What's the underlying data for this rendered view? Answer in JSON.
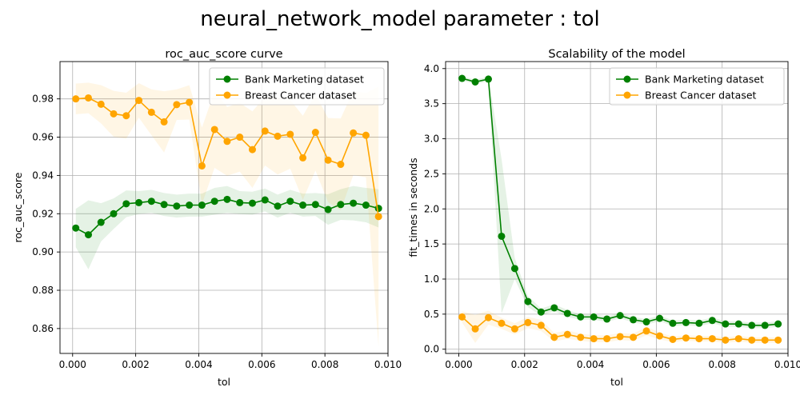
{
  "figure": {
    "suptitle": "neural_network_model parameter : tol"
  },
  "colors": {
    "bank": "#008000",
    "breast": "#FFA500"
  },
  "chart_data": [
    {
      "type": "line",
      "title": "roc_auc_score curve",
      "xlabel": "tol",
      "ylabel": "roc_auc_score",
      "xlim": [
        -0.0004,
        0.01
      ],
      "ylim": [
        0.847,
        0.9995
      ],
      "xticks": [
        0.0,
        0.002,
        0.004,
        0.006,
        0.008,
        0.01
      ],
      "xtick_labels": [
        "0.000",
        "0.002",
        "0.004",
        "0.006",
        "0.008",
        "0.010"
      ],
      "yticks": [
        0.86,
        0.88,
        0.9,
        0.92,
        0.94,
        0.96,
        0.98
      ],
      "ytick_labels": [
        "0.86",
        "0.88",
        "0.90",
        "0.92",
        "0.94",
        "0.96",
        "0.98"
      ],
      "grid": true,
      "legend": "upper-right",
      "x": [
        0.0001,
        0.0005,
        0.0009,
        0.0013,
        0.0017,
        0.0021,
        0.0025,
        0.0029,
        0.0033,
        0.0037,
        0.0041,
        0.0045,
        0.0049,
        0.0053,
        0.0057,
        0.0061,
        0.0065,
        0.0069,
        0.0073,
        0.0077,
        0.0081,
        0.0085,
        0.0089,
        0.0093,
        0.0097
      ],
      "series": [
        {
          "name": "Bank Marketing dataset",
          "color_key": "bank",
          "values": [
            0.9125,
            0.909,
            0.9155,
            0.92,
            0.9252,
            0.9258,
            0.9265,
            0.9248,
            0.924,
            0.9245,
            0.9245,
            0.9265,
            0.9275,
            0.9258,
            0.9255,
            0.9272,
            0.924,
            0.9265,
            0.9245,
            0.9248,
            0.9222,
            0.9248,
            0.9255,
            0.9245,
            0.9228
          ],
          "std": [
            0.01,
            0.018,
            0.01,
            0.008,
            0.007,
            0.006,
            0.006,
            0.006,
            0.006,
            0.006,
            0.006,
            0.007,
            0.007,
            0.006,
            0.006,
            0.006,
            0.006,
            0.006,
            0.006,
            0.006,
            0.008,
            0.008,
            0.009,
            0.009,
            0.01
          ]
        },
        {
          "name": "Breast Cancer dataset",
          "color_key": "breast",
          "values": [
            0.98,
            0.9805,
            0.9772,
            0.9722,
            0.9712,
            0.9792,
            0.973,
            0.968,
            0.977,
            0.9782,
            0.945,
            0.964,
            0.9578,
            0.96,
            0.9535,
            0.9632,
            0.9605,
            0.9615,
            0.9492,
            0.9625,
            0.948,
            0.9458,
            0.9622,
            0.961,
            0.9185
          ],
          "std": [
            0.008,
            0.008,
            0.01,
            0.012,
            0.012,
            0.009,
            0.012,
            0.016,
            0.008,
            0.009,
            0.02,
            0.02,
            0.018,
            0.018,
            0.02,
            0.018,
            0.02,
            0.018,
            0.022,
            0.02,
            0.022,
            0.024,
            0.022,
            0.022,
            0.068
          ]
        }
      ]
    },
    {
      "type": "line",
      "title": "Scalability of the model",
      "xlabel": "tol",
      "ylabel": "fit_times in seconds",
      "xlim": [
        -0.0004,
        0.01
      ],
      "ylim": [
        -0.06,
        4.1
      ],
      "xticks": [
        0.0,
        0.002,
        0.004,
        0.006,
        0.008,
        0.01
      ],
      "xtick_labels": [
        "0.000",
        "0.002",
        "0.004",
        "0.006",
        "0.008",
        "0.010"
      ],
      "yticks": [
        0.0,
        0.5,
        1.0,
        1.5,
        2.0,
        2.5,
        3.0,
        3.5,
        4.0
      ],
      "ytick_labels": [
        "0.0",
        "0.5",
        "1.0",
        "1.5",
        "2.0",
        "2.5",
        "3.0",
        "3.5",
        "4.0"
      ],
      "grid": true,
      "legend": "upper-right",
      "x": [
        0.0001,
        0.0005,
        0.0009,
        0.0013,
        0.0017,
        0.0021,
        0.0025,
        0.0029,
        0.0033,
        0.0037,
        0.0041,
        0.0045,
        0.0049,
        0.0053,
        0.0057,
        0.0061,
        0.0065,
        0.0069,
        0.0073,
        0.0077,
        0.0081,
        0.0085,
        0.0089,
        0.0093,
        0.0097
      ],
      "series": [
        {
          "name": "Bank Marketing dataset",
          "color_key": "bank",
          "values": [
            3.86,
            3.81,
            3.85,
            1.61,
            1.15,
            0.68,
            0.53,
            0.59,
            0.51,
            0.46,
            0.46,
            0.43,
            0.48,
            0.42,
            0.39,
            0.44,
            0.37,
            0.38,
            0.37,
            0.41,
            0.36,
            0.36,
            0.34,
            0.34,
            0.36
          ],
          "std": [
            0.03,
            0.03,
            0.03,
            1.1,
            0.15,
            0.08,
            0.05,
            0.05,
            0.05,
            0.04,
            0.04,
            0.04,
            0.04,
            0.04,
            0.04,
            0.04,
            0.04,
            0.04,
            0.04,
            0.04,
            0.04,
            0.04,
            0.04,
            0.04,
            0.04
          ]
        },
        {
          "name": "Breast Cancer dataset",
          "color_key": "breast",
          "values": [
            0.46,
            0.29,
            0.45,
            0.37,
            0.29,
            0.38,
            0.34,
            0.17,
            0.21,
            0.17,
            0.15,
            0.15,
            0.18,
            0.17,
            0.26,
            0.19,
            0.14,
            0.16,
            0.15,
            0.15,
            0.13,
            0.15,
            0.13,
            0.13,
            0.13
          ],
          "std": [
            0.08,
            0.2,
            0.1,
            0.08,
            0.08,
            0.08,
            0.08,
            0.06,
            0.06,
            0.05,
            0.05,
            0.05,
            0.05,
            0.05,
            0.06,
            0.05,
            0.04,
            0.04,
            0.04,
            0.04,
            0.04,
            0.04,
            0.04,
            0.04,
            0.04
          ]
        }
      ]
    }
  ]
}
